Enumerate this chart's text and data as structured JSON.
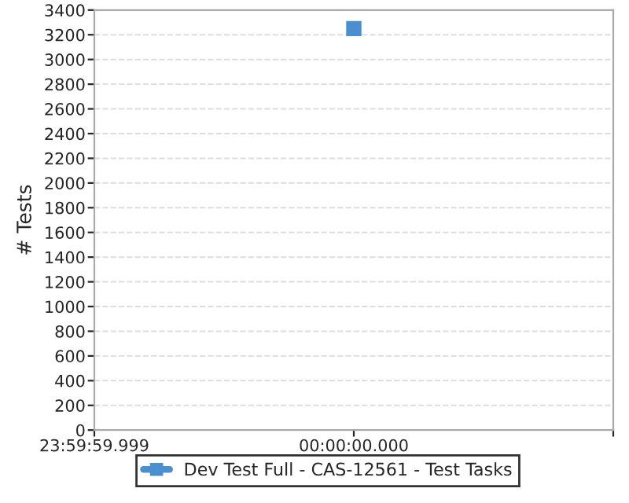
{
  "chart_data": {
    "type": "line",
    "ylabel": "# Tests",
    "series": [
      {
        "name": "Dev Test Full - CAS-12561 - Test Tasks",
        "color": "#4a8fcf",
        "values": [
          null,
          3250,
          null
        ]
      }
    ],
    "categories": [
      "23:59:59.999",
      "00:00:00.000",
      null
    ],
    "ylim": [
      0,
      3400
    ],
    "yticks": [
      0,
      200,
      400,
      600,
      800,
      1000,
      1200,
      1400,
      1600,
      1800,
      2000,
      2200,
      2400,
      2600,
      2800,
      3000,
      3200,
      3400
    ],
    "grid": "y",
    "legend": "bottom",
    "marker": "square",
    "line_style": "solid"
  }
}
